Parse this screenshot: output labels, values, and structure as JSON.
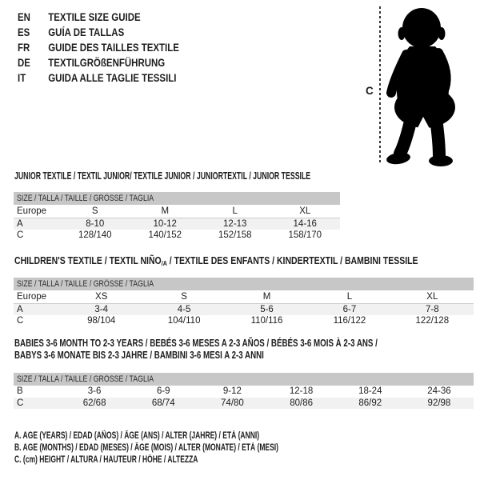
{
  "colors": {
    "header_bar": "#c7c7c7",
    "row_shade": "#f1f1f1",
    "text": "#1d1d1d",
    "silhouette": "#000000",
    "dashed_line": "#333333"
  },
  "languages": [
    {
      "code": "EN",
      "title": "TEXTILE SIZE GUIDE"
    },
    {
      "code": "ES",
      "title": "GUÍA DE TALLAS"
    },
    {
      "code": "FR",
      "title": "GUIDE DES TAILLES TEXTILE"
    },
    {
      "code": "DE",
      "title": "TEXTILGRÖßENFÜHRUNG"
    },
    {
      "code": "IT",
      "title": "GUIDA ALLE TAGLIE TESSILI"
    }
  ],
  "figure": {
    "label": "C",
    "icon": "toddler-silhouette"
  },
  "tables": [
    {
      "title": "JUNIOR TEXTILE / TEXTIL JUNIOR/ TEXTILE JUNIOR / JUNIORTEXTIL / JUNIOR TESSILE",
      "size_header": "SIZE / TALLA / TAILLE / GRÖSSE / TAGLIA",
      "columns": [
        "Europe",
        "S",
        "M",
        "L",
        "XL"
      ],
      "rows": [
        {
          "label": "A",
          "values": [
            "8-10",
            "10-12",
            "12-13",
            "14-16"
          ],
          "shaded": true
        },
        {
          "label": "C",
          "values": [
            "128/140",
            "140/152",
            "152/158",
            "158/170"
          ],
          "shaded": false
        }
      ]
    },
    {
      "title_prefix": "CHILDREN'S TEXTILE / TEXTIL NIÑO",
      "title_sub": "/A",
      "title_suffix": " / TEXTILE DES ENFANTS / KINDERTEXTIL / BAMBINI TESSILE",
      "size_header": "SIZE / TALLA / TAILLE / GRÖSSE / TAGLIA",
      "columns": [
        "Europe",
        "XS",
        "S",
        "M",
        "L",
        "XL"
      ],
      "rows": [
        {
          "label": "A",
          "values": [
            "3-4",
            "4-5",
            "5-6",
            "6-7",
            "7-8"
          ],
          "shaded": true
        },
        {
          "label": "C",
          "values": [
            "98/104",
            "104/110",
            "110/116",
            "116/122",
            "122/128"
          ],
          "shaded": false
        }
      ]
    },
    {
      "title_line1": "BABIES 3-6 MONTH TO 2-3 YEARS / BEBÉS 3-6 MESES A 2-3 AÑOS / BÉBÉS 3-6 MOIS À 2-3 ANS /",
      "title_line2": "BABYS 3-6 MONATE BIS 2-3 JAHRE / BAMBINI 3-6 MESI A 2-3 ANNI",
      "size_header": "SIZE / TALLA / TAILLE / GRÖSSE / TAGLIA",
      "rows": [
        {
          "label": "B",
          "values": [
            "3-6",
            "6-9",
            "9-12",
            "12-18",
            "18-24",
            "24-36"
          ],
          "shaded": false
        },
        {
          "label": "C",
          "values": [
            "62/68",
            "68/74",
            "74/80",
            "80/86",
            "86/92",
            "92/98"
          ],
          "shaded": true
        }
      ]
    }
  ],
  "footnotes": [
    "A. AGE (YEARS) / EDAD (AÑOS) / ÂGE (ANS) / ALTER (JAHRE) / ETÀ (ANNI)",
    "B. AGE (MONTHS) / EDAD (MESES) / ÂGE (MOIS) / ALTER (MONATE) / ETÀ (MESI)",
    "C. (cm) HEIGHT / ALTURA / HAUTEUR / HÖHE / ALTEZZA"
  ]
}
